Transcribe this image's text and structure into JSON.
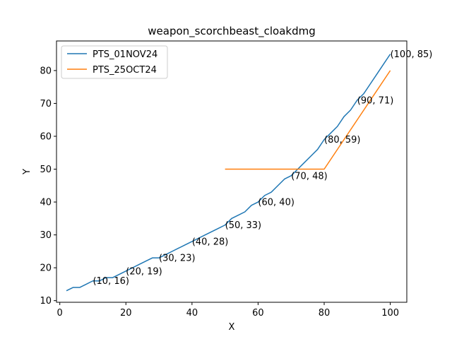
{
  "chart_data": {
    "type": "line",
    "title": "weapon_scorchbeast_cloakdmg",
    "xlabel": "X",
    "ylabel": "Y",
    "xlim": [
      -1,
      105
    ],
    "ylim": [
      9.5,
      89
    ],
    "xticks": [
      0,
      20,
      40,
      60,
      80,
      100
    ],
    "yticks": [
      10,
      20,
      30,
      40,
      50,
      60,
      70,
      80
    ],
    "grid": false,
    "legend": "top-left",
    "series": [
      {
        "name": "PTS_01NOV24",
        "color": "#1f77b4",
        "x": [
          2,
          4,
          6,
          8,
          10,
          12,
          14,
          16,
          18,
          20,
          22,
          24,
          26,
          28,
          30,
          32,
          34,
          36,
          38,
          40,
          42,
          44,
          46,
          48,
          50,
          52,
          54,
          56,
          58,
          60,
          62,
          64,
          66,
          68,
          70,
          72,
          74,
          76,
          78,
          80,
          82,
          84,
          86,
          88,
          90,
          92,
          94,
          96,
          98,
          100
        ],
        "y": [
          13,
          14,
          14,
          15,
          16,
          16,
          17,
          17,
          18,
          19,
          20,
          21,
          22,
          23,
          23,
          24,
          25,
          26,
          27,
          28,
          29,
          30,
          31,
          32,
          33,
          35,
          36,
          37,
          39,
          40,
          42,
          43,
          45,
          47,
          48,
          50,
          52,
          54,
          56,
          59,
          61,
          63,
          66,
          68,
          71,
          73,
          76,
          79,
          82,
          85
        ]
      },
      {
        "name": "PTS_25OCT24",
        "color": "#ff7f0e",
        "x": [
          50,
          80,
          100
        ],
        "y": [
          50,
          50,
          80
        ]
      }
    ],
    "annotations": [
      {
        "x": 10,
        "y": 16,
        "text": "(10, 16)"
      },
      {
        "x": 20,
        "y": 19,
        "text": "(20, 19)"
      },
      {
        "x": 30,
        "y": 23,
        "text": "(30, 23)"
      },
      {
        "x": 40,
        "y": 28,
        "text": "(40, 28)"
      },
      {
        "x": 50,
        "y": 33,
        "text": "(50, 33)"
      },
      {
        "x": 60,
        "y": 40,
        "text": "(60, 40)"
      },
      {
        "x": 70,
        "y": 48,
        "text": "(70, 48)"
      },
      {
        "x": 80,
        "y": 59,
        "text": "(80, 59)"
      },
      {
        "x": 90,
        "y": 71,
        "text": "(90, 71)"
      },
      {
        "x": 100,
        "y": 85,
        "text": "(100, 85)"
      }
    ]
  }
}
